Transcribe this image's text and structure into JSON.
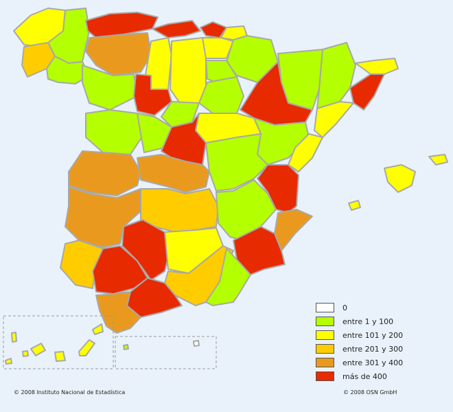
{
  "colors": {
    "c0": "#ffffff",
    "c1": "#b4ff00",
    "c2": "#ffff00",
    "c3": "#ffcc00",
    "c4": "#e99a1e",
    "c5": "#e72a00",
    "border": "#a8a8a8",
    "sea": "#e9f2fa"
  },
  "legend": [
    {
      "label": "0",
      "color": "#ffffff"
    },
    {
      "label": "entre 1 y 100",
      "color": "#b4ff00"
    },
    {
      "label": "entre 101 y 200",
      "color": "#ffff00"
    },
    {
      "label": "entre 201 y 300",
      "color": "#ffcc00"
    },
    {
      "label": "entre 301 y 400",
      "color": "#e99a1e"
    },
    {
      "label": "más de 400",
      "color": "#e72a00"
    }
  ],
  "credits": {
    "left": "© 2008 Instituto Nacional de Estadística",
    "right": "© 2008 OSN GmbH"
  }
}
